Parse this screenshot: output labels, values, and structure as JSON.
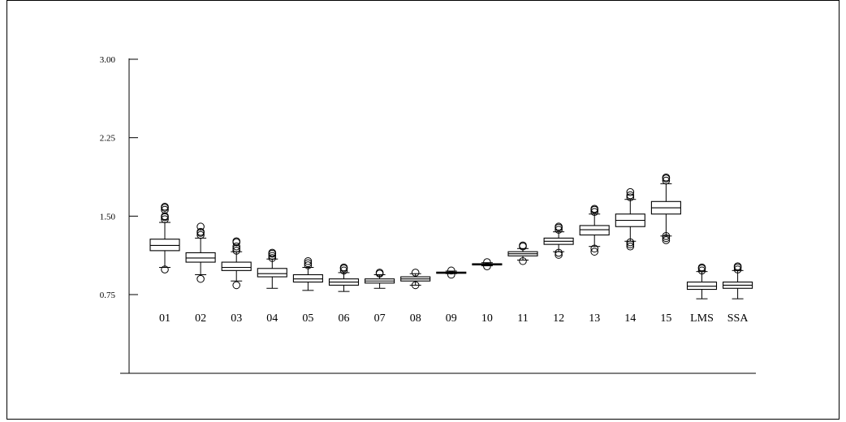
{
  "chart_data": {
    "type": "box",
    "title": "",
    "xlabel": "",
    "ylabel": "",
    "ylim": [
      0.0,
      3.0
    ],
    "yticks": [
      0.75,
      1.5,
      2.25,
      3.0
    ],
    "ytick_labels": [
      "0.75",
      "1.50",
      "2.25",
      "3.00"
    ],
    "grid": false,
    "colors": {
      "stroke": "#000000",
      "background": "#ffffff"
    },
    "categories": [
      "01",
      "02",
      "03",
      "04",
      "05",
      "06",
      "07",
      "08",
      "09",
      "10",
      "11",
      "12",
      "13",
      "14",
      "15",
      "LMS",
      "SSA"
    ],
    "boxes": [
      {
        "name": "01",
        "low": 1.01,
        "q1": 1.17,
        "median": 1.22,
        "q3": 1.28,
        "high": 1.44,
        "outliers": [
          0.99,
          1.47,
          1.49,
          1.5,
          1.56,
          1.58,
          1.59
        ]
      },
      {
        "name": "02",
        "low": 0.94,
        "q1": 1.06,
        "median": 1.1,
        "q3": 1.15,
        "high": 1.29,
        "outliers": [
          0.9,
          1.32,
          1.34,
          1.35,
          1.4
        ]
      },
      {
        "name": "03",
        "low": 0.88,
        "q1": 0.98,
        "median": 1.01,
        "q3": 1.06,
        "high": 1.16,
        "outliers": [
          0.84,
          1.17,
          1.19,
          1.21,
          1.25,
          1.26
        ]
      },
      {
        "name": "04",
        "low": 0.81,
        "q1": 0.92,
        "median": 0.95,
        "q3": 1.0,
        "high": 1.09,
        "outliers": [
          1.1,
          1.12,
          1.14,
          1.15
        ]
      },
      {
        "name": "05",
        "low": 0.79,
        "q1": 0.87,
        "median": 0.9,
        "q3": 0.94,
        "high": 1.01,
        "outliers": [
          1.03,
          1.05,
          1.07
        ]
      },
      {
        "name": "06",
        "low": 0.78,
        "q1": 0.84,
        "median": 0.87,
        "q3": 0.9,
        "high": 0.96,
        "outliers": [
          0.98,
          1.0,
          1.01
        ]
      },
      {
        "name": "07",
        "low": 0.81,
        "q1": 0.86,
        "median": 0.88,
        "q3": 0.9,
        "high": 0.94,
        "outliers": [
          0.95,
          0.96
        ]
      },
      {
        "name": "08",
        "low": 0.84,
        "q1": 0.88,
        "median": 0.9,
        "q3": 0.92,
        "high": 0.95,
        "outliers": [
          0.84,
          0.96
        ]
      },
      {
        "name": "09",
        "low": 0.95,
        "q1": 0.955,
        "median": 0.96,
        "q3": 0.965,
        "high": 0.975,
        "outliers": [
          0.94,
          0.98
        ]
      },
      {
        "name": "10",
        "low": 1.025,
        "q1": 1.035,
        "median": 1.04,
        "q3": 1.045,
        "high": 1.055,
        "outliers": [
          1.02,
          1.06
        ]
      },
      {
        "name": "11",
        "low": 1.08,
        "q1": 1.12,
        "median": 1.14,
        "q3": 1.16,
        "high": 1.19,
        "outliers": [
          1.07,
          1.21,
          1.22
        ]
      },
      {
        "name": "12",
        "low": 1.16,
        "q1": 1.23,
        "median": 1.26,
        "q3": 1.29,
        "high": 1.35,
        "outliers": [
          1.13,
          1.15,
          1.37,
          1.39,
          1.4
        ]
      },
      {
        "name": "13",
        "low": 1.21,
        "q1": 1.32,
        "median": 1.37,
        "q3": 1.41,
        "high": 1.52,
        "outliers": [
          1.16,
          1.19,
          1.54,
          1.56,
          1.57
        ]
      },
      {
        "name": "14",
        "low": 1.26,
        "q1": 1.4,
        "median": 1.46,
        "q3": 1.52,
        "high": 1.66,
        "outliers": [
          1.21,
          1.23,
          1.25,
          1.68,
          1.7,
          1.73
        ]
      },
      {
        "name": "15",
        "low": 1.31,
        "q1": 1.52,
        "median": 1.58,
        "q3": 1.64,
        "high": 1.81,
        "outliers": [
          1.27,
          1.29,
          1.31,
          1.84,
          1.86,
          1.87
        ]
      },
      {
        "name": "LMS",
        "low": 0.71,
        "q1": 0.8,
        "median": 0.83,
        "q3": 0.87,
        "high": 0.97,
        "outliers": [
          0.98,
          1.0,
          1.01
        ]
      },
      {
        "name": "SSA",
        "low": 0.71,
        "q1": 0.81,
        "median": 0.84,
        "q3": 0.87,
        "high": 0.98,
        "outliers": [
          0.99,
          1.01,
          1.02
        ]
      }
    ]
  }
}
